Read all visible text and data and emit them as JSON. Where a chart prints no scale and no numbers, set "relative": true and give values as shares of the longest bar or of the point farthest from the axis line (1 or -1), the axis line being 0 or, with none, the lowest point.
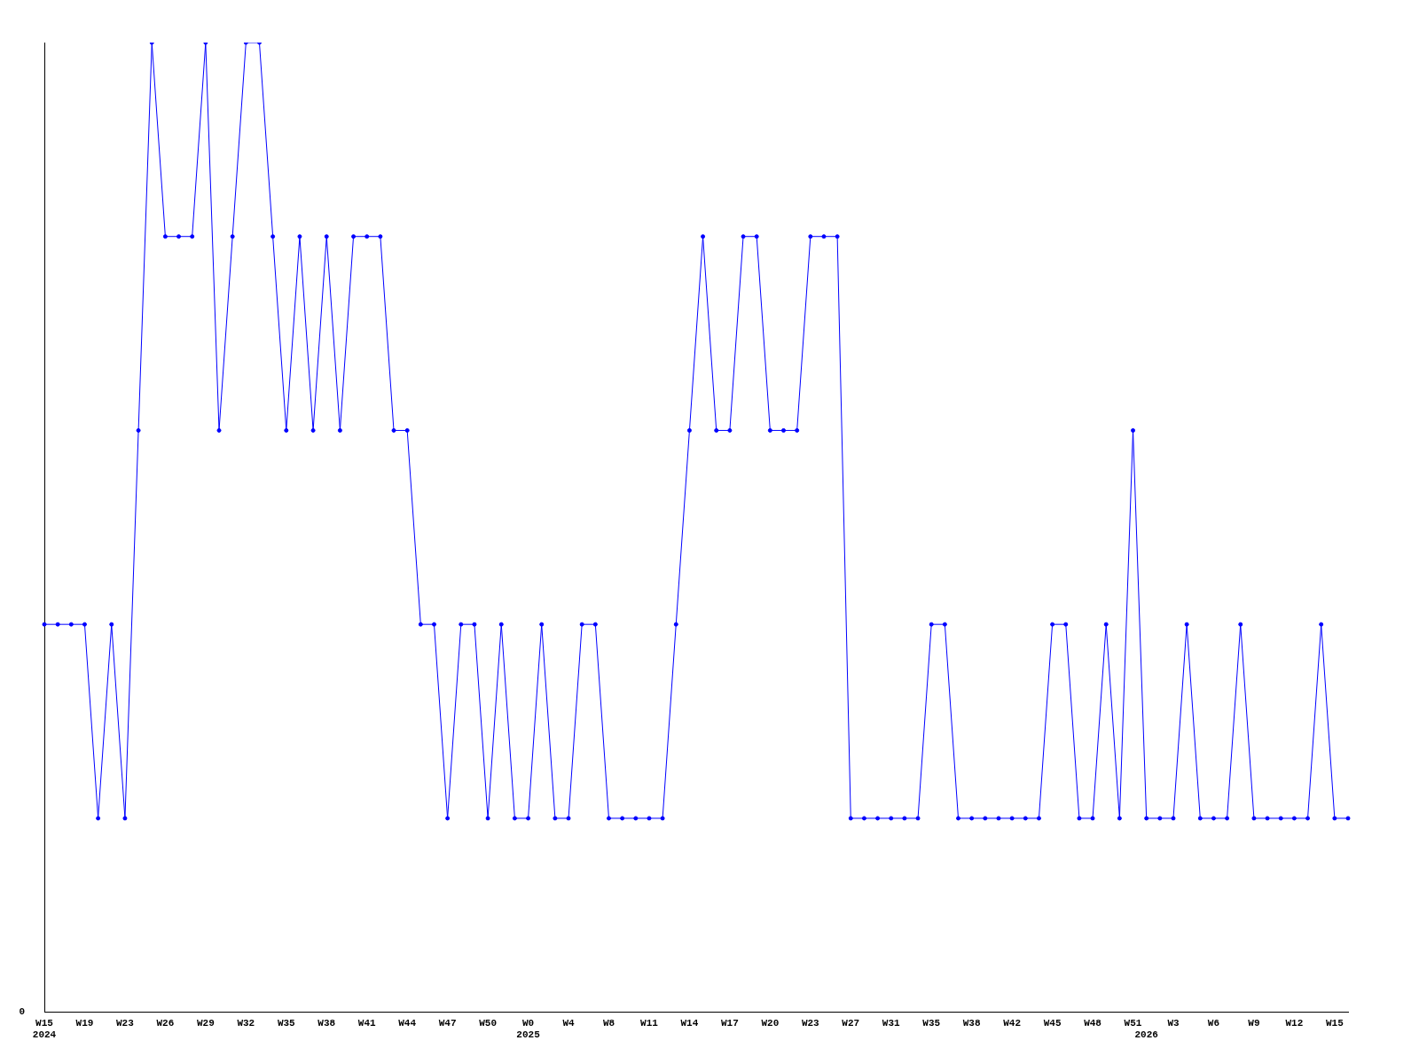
{
  "chart_data": {
    "type": "line",
    "relative": true,
    "color": "#0000ff",
    "marker": "circle",
    "grid": false,
    "legend": false,
    "annotations": [
      "0"
    ],
    "categories": [
      "W15\n2024",
      null,
      null,
      "W19",
      null,
      null,
      "W23",
      null,
      null,
      "W26",
      null,
      null,
      "W29",
      null,
      null,
      "W32",
      null,
      null,
      "W35",
      null,
      null,
      "W38",
      null,
      null,
      "W41",
      null,
      null,
      "W44",
      null,
      null,
      "W47",
      null,
      null,
      "W50",
      null,
      null,
      "W0\n2025",
      null,
      null,
      "W4",
      null,
      null,
      "W8",
      null,
      null,
      "W11",
      null,
      null,
      "W14",
      null,
      null,
      "W17",
      null,
      null,
      "W20",
      null,
      null,
      "W23",
      null,
      null,
      "W27",
      null,
      null,
      "W31",
      null,
      null,
      "W35",
      null,
      null,
      "W38",
      null,
      null,
      "W42",
      null,
      null,
      "W45",
      null,
      null,
      "W48",
      null,
      null,
      "W51",
      "\n2026",
      null,
      "W3",
      null,
      null,
      "W6",
      null,
      null,
      "W9",
      null,
      null,
      "W12",
      null,
      null,
      "W15",
      null
    ],
    "values": [
      0.4,
      0.4,
      0.4,
      0.4,
      0.2,
      0.4,
      0.2,
      0.6,
      1,
      0.8,
      0.8,
      0.8,
      1,
      0.6,
      0.8,
      1,
      1,
      0.8,
      0.6,
      0.8,
      0.6,
      0.8,
      0.6,
      0.8,
      0.8,
      0.8,
      0.6,
      0.6,
      0.4,
      0.4,
      0.2,
      0.4,
      0.4,
      0.2,
      0.4,
      0.2,
      0.2,
      0.4,
      0.2,
      0.2,
      0.4,
      0.4,
      0.2,
      0.2,
      0.2,
      0.2,
      0.2,
      0.4,
      0.6,
      0.8,
      0.6,
      0.6,
      0.8,
      0.8,
      0.6,
      0.6,
      0.6,
      0.8,
      0.8,
      0.8,
      0.2,
      0.2,
      0.2,
      0.2,
      0.2,
      0.2,
      0.4,
      0.4,
      0.2,
      0.2,
      0.2,
      0.2,
      0.2,
      0.2,
      0.2,
      0.4,
      0.4,
      0.2,
      0.2,
      0.4,
      0.2,
      0.6,
      0.2,
      0.2,
      0.2,
      0.4,
      0.2,
      0.2,
      0.2,
      0.4,
      0.2,
      0.2,
      0.2,
      0.2,
      0.2,
      0.4,
      0.2,
      0.2
    ]
  }
}
